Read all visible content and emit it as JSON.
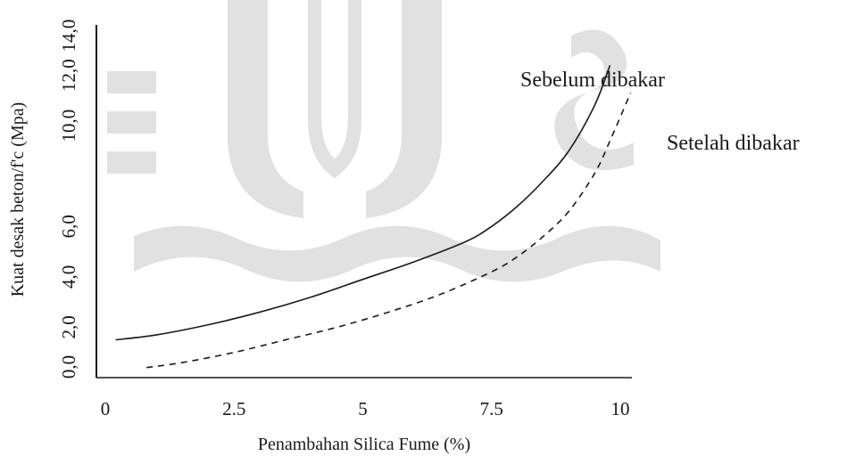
{
  "colors": {
    "ink": "#1a1a1a",
    "watermark": "#d9d9d9"
  },
  "watermark": {
    "description_icon": "university-seal-watermark-icon"
  },
  "chart_data": {
    "type": "line",
    "xlabel": "Penambahan Silica Fume (%)",
    "ylabel": "Kuat desak beton/f'c (Mpa)",
    "xlim": [
      0,
      10
    ],
    "ylim": [
      0,
      14
    ],
    "x_ticks": [
      "0",
      "2.5",
      "5",
      "7.5",
      "10"
    ],
    "x_tick_values": [
      0,
      2.5,
      5,
      7.5,
      10
    ],
    "y_ticks": [
      "0,0",
      "2,0",
      "4,0",
      "6,0",
      "10,0",
      "12,0",
      "14,0"
    ],
    "y_tick_values": [
      0,
      2,
      4,
      6,
      10,
      12,
      14
    ],
    "grid": false,
    "series": [
      {
        "name": "Sebelum dibakar",
        "style": "solid",
        "x": [
          0.2,
          1.0,
          2.0,
          3.0,
          4.0,
          5.0,
          6.0,
          7.0,
          7.5,
          8.0,
          8.5,
          9.0,
          9.5,
          9.8
        ],
        "y": [
          1.5,
          1.7,
          2.1,
          2.6,
          3.2,
          3.9,
          4.6,
          5.4,
          6.0,
          6.8,
          7.8,
          9.0,
          10.8,
          12.4
        ]
      },
      {
        "name": "Setelah dibakar",
        "style": "dashed",
        "x": [
          0.8,
          1.5,
          2.5,
          3.5,
          4.5,
          5.5,
          6.5,
          7.5,
          8.0,
          8.5,
          9.0,
          9.5,
          9.8,
          10.2
        ],
        "y": [
          0.4,
          0.6,
          1.0,
          1.5,
          2.0,
          2.6,
          3.3,
          4.2,
          4.8,
          5.6,
          6.6,
          8.1,
          9.4,
          11.3
        ]
      }
    ]
  }
}
